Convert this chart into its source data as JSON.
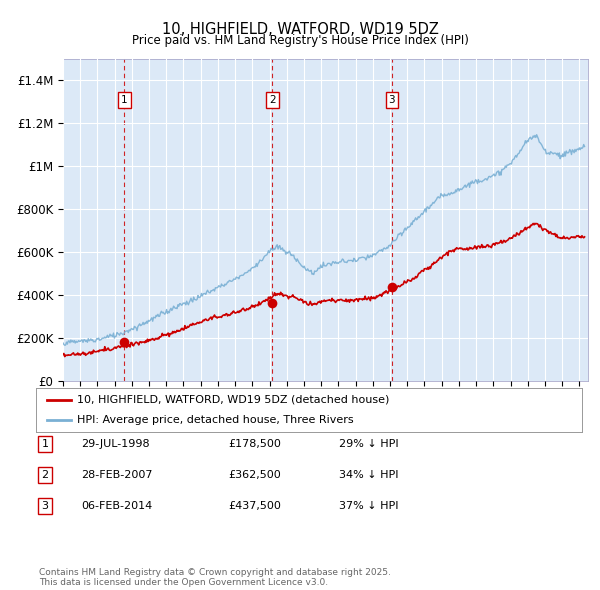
{
  "title": "10, HIGHFIELD, WATFORD, WD19 5DZ",
  "subtitle": "Price paid vs. HM Land Registry's House Price Index (HPI)",
  "ylabel_ticks": [
    "£0",
    "£200K",
    "£400K",
    "£600K",
    "£800K",
    "£1M",
    "£1.2M",
    "£1.4M"
  ],
  "ytick_values": [
    0,
    200000,
    400000,
    600000,
    800000,
    1000000,
    1200000,
    1400000
  ],
  "ylim": [
    0,
    1500000
  ],
  "xlim_start": 1995.0,
  "xlim_end": 2025.5,
  "plot_bg": "#dce9f7",
  "red_line_color": "#cc0000",
  "blue_line_color": "#7ab0d4",
  "vline_color": "#cc0000",
  "transactions": [
    {
      "num": 1,
      "date_label": "29-JUL-1998",
      "date_x": 1998.57,
      "price": 178500,
      "pct": "29%"
    },
    {
      "num": 2,
      "date_label": "28-FEB-2007",
      "date_x": 2007.16,
      "price": 362500,
      "pct": "34%"
    },
    {
      "num": 3,
      "date_label": "06-FEB-2014",
      "date_x": 2014.1,
      "price": 437500,
      "pct": "37%"
    }
  ],
  "legend_line1": "10, HIGHFIELD, WATFORD, WD19 5DZ (detached house)",
  "legend_line2": "HPI: Average price, detached house, Three Rivers",
  "footnote": "Contains HM Land Registry data © Crown copyright and database right 2025.\nThis data is licensed under the Open Government Licence v3.0.",
  "table_rows": [
    [
      "1",
      "29-JUL-1998",
      "£178,500",
      "29% ↓ HPI"
    ],
    [
      "2",
      "28-FEB-2007",
      "£362,500",
      "34% ↓ HPI"
    ],
    [
      "3",
      "06-FEB-2014",
      "£437,500",
      "37% ↓ HPI"
    ]
  ]
}
